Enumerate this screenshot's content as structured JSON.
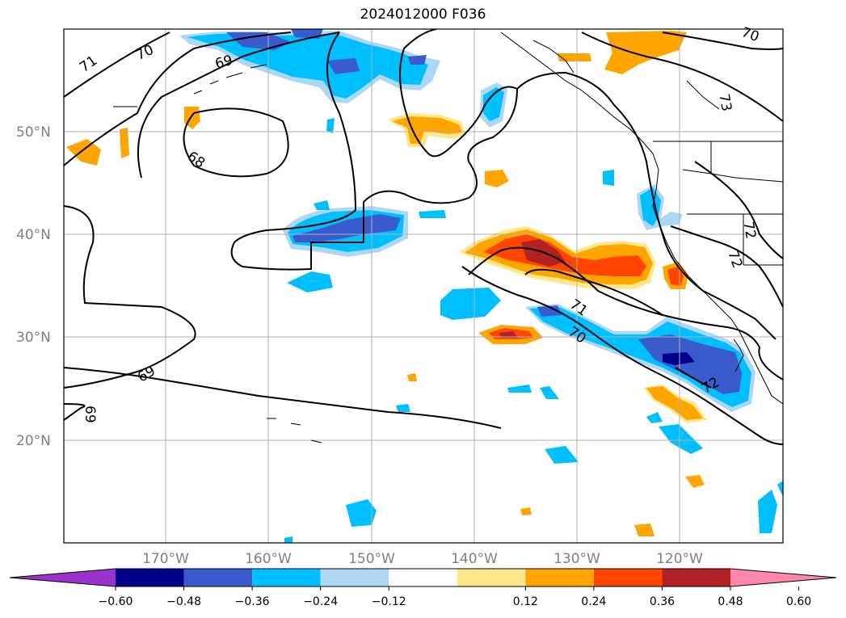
{
  "title": "2024012000 F036",
  "lat_labels": [
    "50°N",
    "40°N",
    "30°N",
    "20°N"
  ],
  "lon_labels": [
    "170°W",
    "160°W",
    "150°W",
    "140°W",
    "130°W",
    "120°W"
  ],
  "contour_labels": [
    "71",
    "70",
    "69",
    "68",
    "69",
    "69",
    "71",
    "70",
    "72",
    "72",
    "73",
    "70",
    "72"
  ],
  "colorbar": {
    "ticks": [
      "−0.60",
      "−0.48",
      "−0.36",
      "−0.24",
      "−0.12",
      "0.12",
      "0.24",
      "0.36",
      "0.48",
      "0.60"
    ],
    "colors": [
      "#9933cc",
      "#00008b",
      "#3a5bcc",
      "#00bfff",
      "#add8f5",
      "#ffffff",
      "#ffe88a",
      "#ffa500",
      "#ff4500",
      "#b22222",
      "#ff88aa"
    ]
  },
  "colors": {
    "strong_positive": "#b22222",
    "positive_high": "#ff4500",
    "positive_mid": "#ffa500",
    "positive_low": "#ffe88a",
    "negative_low": "#add8f5",
    "negative_mid": "#00bfff",
    "negative_high": "#3a5bcc",
    "negative_strongest": "#00008b"
  }
}
